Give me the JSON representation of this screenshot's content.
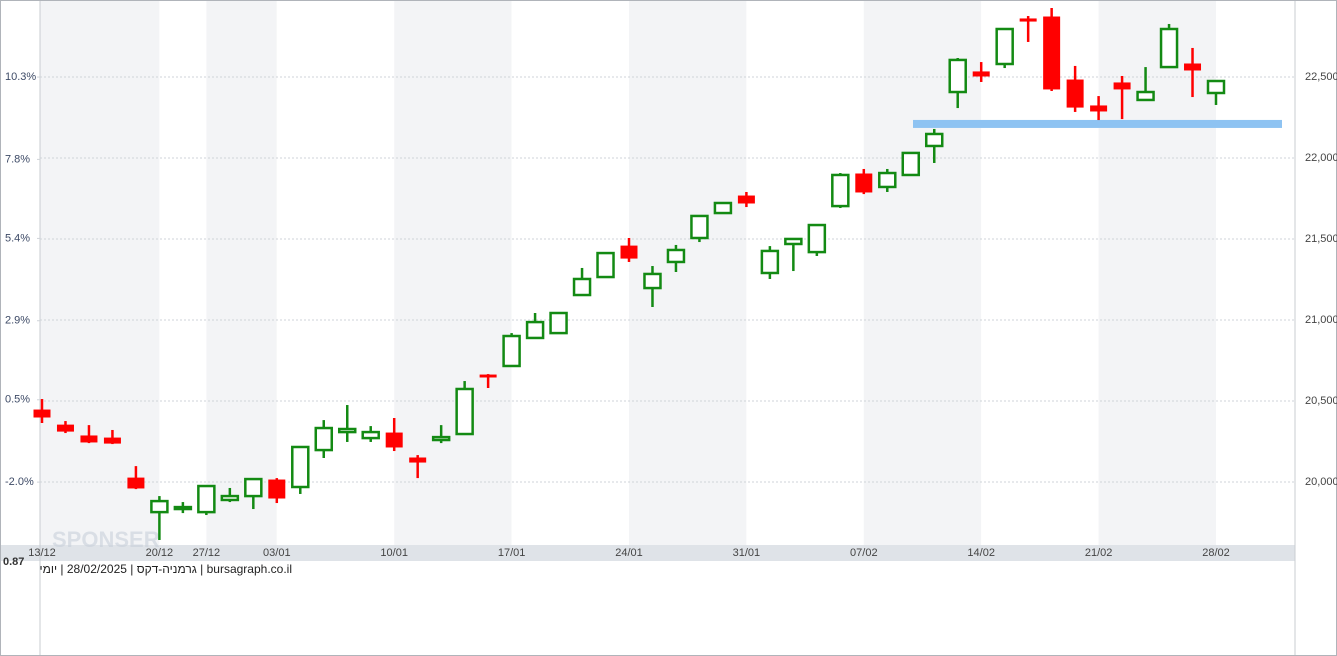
{
  "chart_data": {
    "type": "candlestick",
    "categories": [
      "13/12",
      null,
      null,
      null,
      null,
      "20/12",
      null,
      "27/12",
      null,
      null,
      "03/01",
      null,
      null,
      null,
      null,
      "10/01",
      null,
      null,
      null,
      null,
      "17/01",
      null,
      null,
      null,
      null,
      "24/01",
      null,
      null,
      null,
      null,
      "31/01",
      null,
      null,
      null,
      null,
      "07/02",
      null,
      null,
      null,
      null,
      "14/02",
      null,
      null,
      null,
      null,
      "21/02",
      null,
      null,
      null,
      null,
      "28/02"
    ],
    "open": [
      20444,
      20351,
      20284,
      20271,
      20024,
      19814,
      19833,
      19814,
      19889,
      19913,
      20012,
      19969,
      20197,
      20308,
      20271,
      20302,
      20148,
      20259,
      20296,
      20660,
      20716,
      20889,
      20919,
      21154,
      21265,
      21456,
      21197,
      21358,
      21506,
      21660,
      21765,
      21290,
      21469,
      21419,
      21703,
      21901,
      21821,
      21895,
      22074,
      22407,
      22531,
      22580,
      22858,
      22870,
      22481,
      22321,
      22463,
      22358,
      22561,
      22580,
      22401
    ],
    "high": [
      20512,
      20376,
      20351,
      20321,
      20098,
      19913,
      19876,
      19975,
      19963,
      20018,
      20024,
      20216,
      20382,
      20475,
      20345,
      20395,
      20166,
      20351,
      20623,
      20666,
      20919,
      21043,
      21043,
      21321,
      21413,
      21506,
      21333,
      21463,
      21648,
      21728,
      21790,
      21456,
      21506,
      21586,
      21907,
      21932,
      21932,
      22031,
      22179,
      22617,
      22592,
      22796,
      22876,
      22926,
      22568,
      22382,
      22506,
      22561,
      22827,
      22679,
      22481
    ],
    "low": [
      20364,
      20302,
      20240,
      20234,
      19956,
      19642,
      19808,
      19796,
      19876,
      19833,
      19870,
      19926,
      20148,
      20247,
      20247,
      20191,
      20024,
      20240,
      20290,
      20580,
      20716,
      20889,
      20919,
      21154,
      21265,
      21358,
      21080,
      21296,
      21481,
      21654,
      21697,
      21253,
      21302,
      21395,
      21691,
      21777,
      21790,
      21889,
      21969,
      22308,
      22469,
      22555,
      22716,
      22413,
      22284,
      22234,
      22240,
      22352,
      22561,
      22376,
      22327
    ],
    "close": [
      20401,
      20314,
      20247,
      20240,
      19963,
      19882,
      19845,
      19975,
      19913,
      20018,
      19901,
      20216,
      20333,
      20327,
      20308,
      20216,
      20123,
      20277,
      20574,
      20648,
      20901,
      20987,
      21043,
      21253,
      21413,
      21382,
      21284,
      21432,
      21642,
      21722,
      21722,
      21426,
      21500,
      21586,
      21895,
      21790,
      21907,
      22031,
      22148,
      22605,
      22506,
      22796,
      22845,
      22426,
      22314,
      22290,
      22426,
      22407,
      22796,
      22543,
      22475
    ],
    "up_color": "#138a13",
    "down_color": "#ff0000",
    "ylim": [
      19611,
      22975
    ],
    "yticks": [
      {
        "value": 20000,
        "label": "20,000"
      },
      {
        "value": 20500,
        "label": "20,500"
      },
      {
        "value": 21000,
        "label": "21,000"
      },
      {
        "value": 21500,
        "label": "21,500"
      },
      {
        "value": 22000,
        "label": "22,000"
      },
      {
        "value": 22500,
        "label": "22,500"
      }
    ],
    "y2lim": [
      -3.91,
      12.64
    ],
    "y2ticks": [
      {
        "value": -2.0,
        "label": "-2.0%"
      },
      {
        "value": 0.5,
        "label": "0.5%"
      },
      {
        "value": 2.9,
        "label": "2.9%"
      },
      {
        "value": 5.4,
        "label": "5.4%"
      },
      {
        "value": 7.8,
        "label": "7.8%"
      },
      {
        "value": 10.3,
        "label": "10.3%"
      }
    ],
    "grid": true,
    "support_line": {
      "value": 22210,
      "color": "#8ec3f2"
    },
    "watermark": "SPONSER",
    "corner_label": "0.87",
    "footer": "bursagraph.co.il | גרמניה-דקס | 28/02/2025 | יומי"
  }
}
